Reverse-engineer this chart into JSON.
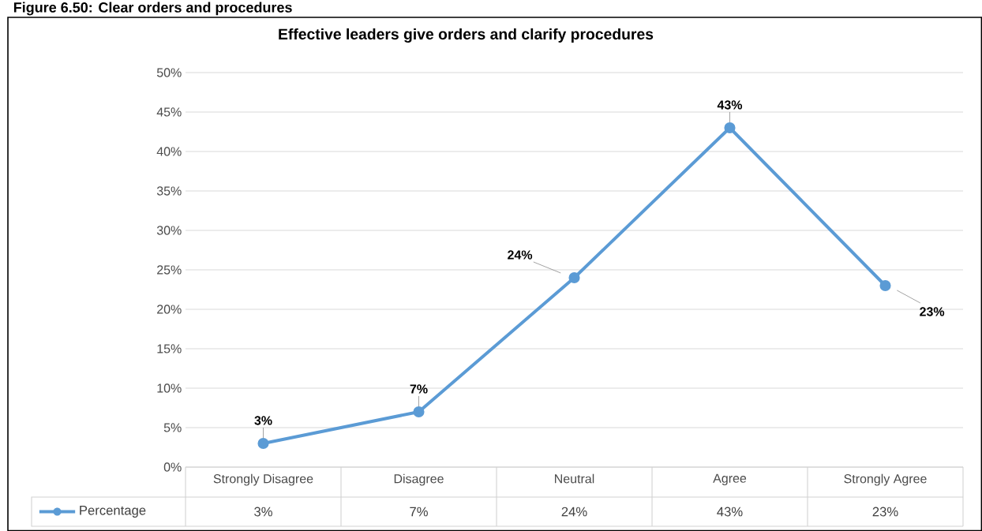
{
  "chart_data": {
    "type": "line",
    "title": "Effective leaders give orders and clarify procedures",
    "annotations": [
      "Figure 6.50: Clear orders and procedures"
    ],
    "categories": [
      "Strongly Disagree",
      "Disagree",
      "Neutral",
      "Agree",
      "Strongly Agree"
    ],
    "series": [
      {
        "name": "Percentage",
        "color": "#5b9bd5",
        "values": [
          3,
          7,
          24,
          43,
          23
        ],
        "value_labels": [
          "3%",
          "7%",
          "24%",
          "43%",
          "23%"
        ]
      }
    ],
    "ylim": [
      0,
      50
    ],
    "yticks": [
      {
        "value": 0,
        "label": "0%"
      },
      {
        "value": 5,
        "label": "5%"
      },
      {
        "value": 10,
        "label": "10%"
      },
      {
        "value": 15,
        "label": "15%"
      },
      {
        "value": 20,
        "label": "20%"
      },
      {
        "value": 25,
        "label": "25%"
      },
      {
        "value": 30,
        "label": "30%"
      },
      {
        "value": 35,
        "label": "35%"
      },
      {
        "value": 40,
        "label": "40%"
      },
      {
        "value": 45,
        "label": "45%"
      },
      {
        "value": 50,
        "label": "50%"
      }
    ],
    "grid": "y",
    "legend": "bottom",
    "marker": "circle",
    "line_style": "solid"
  }
}
